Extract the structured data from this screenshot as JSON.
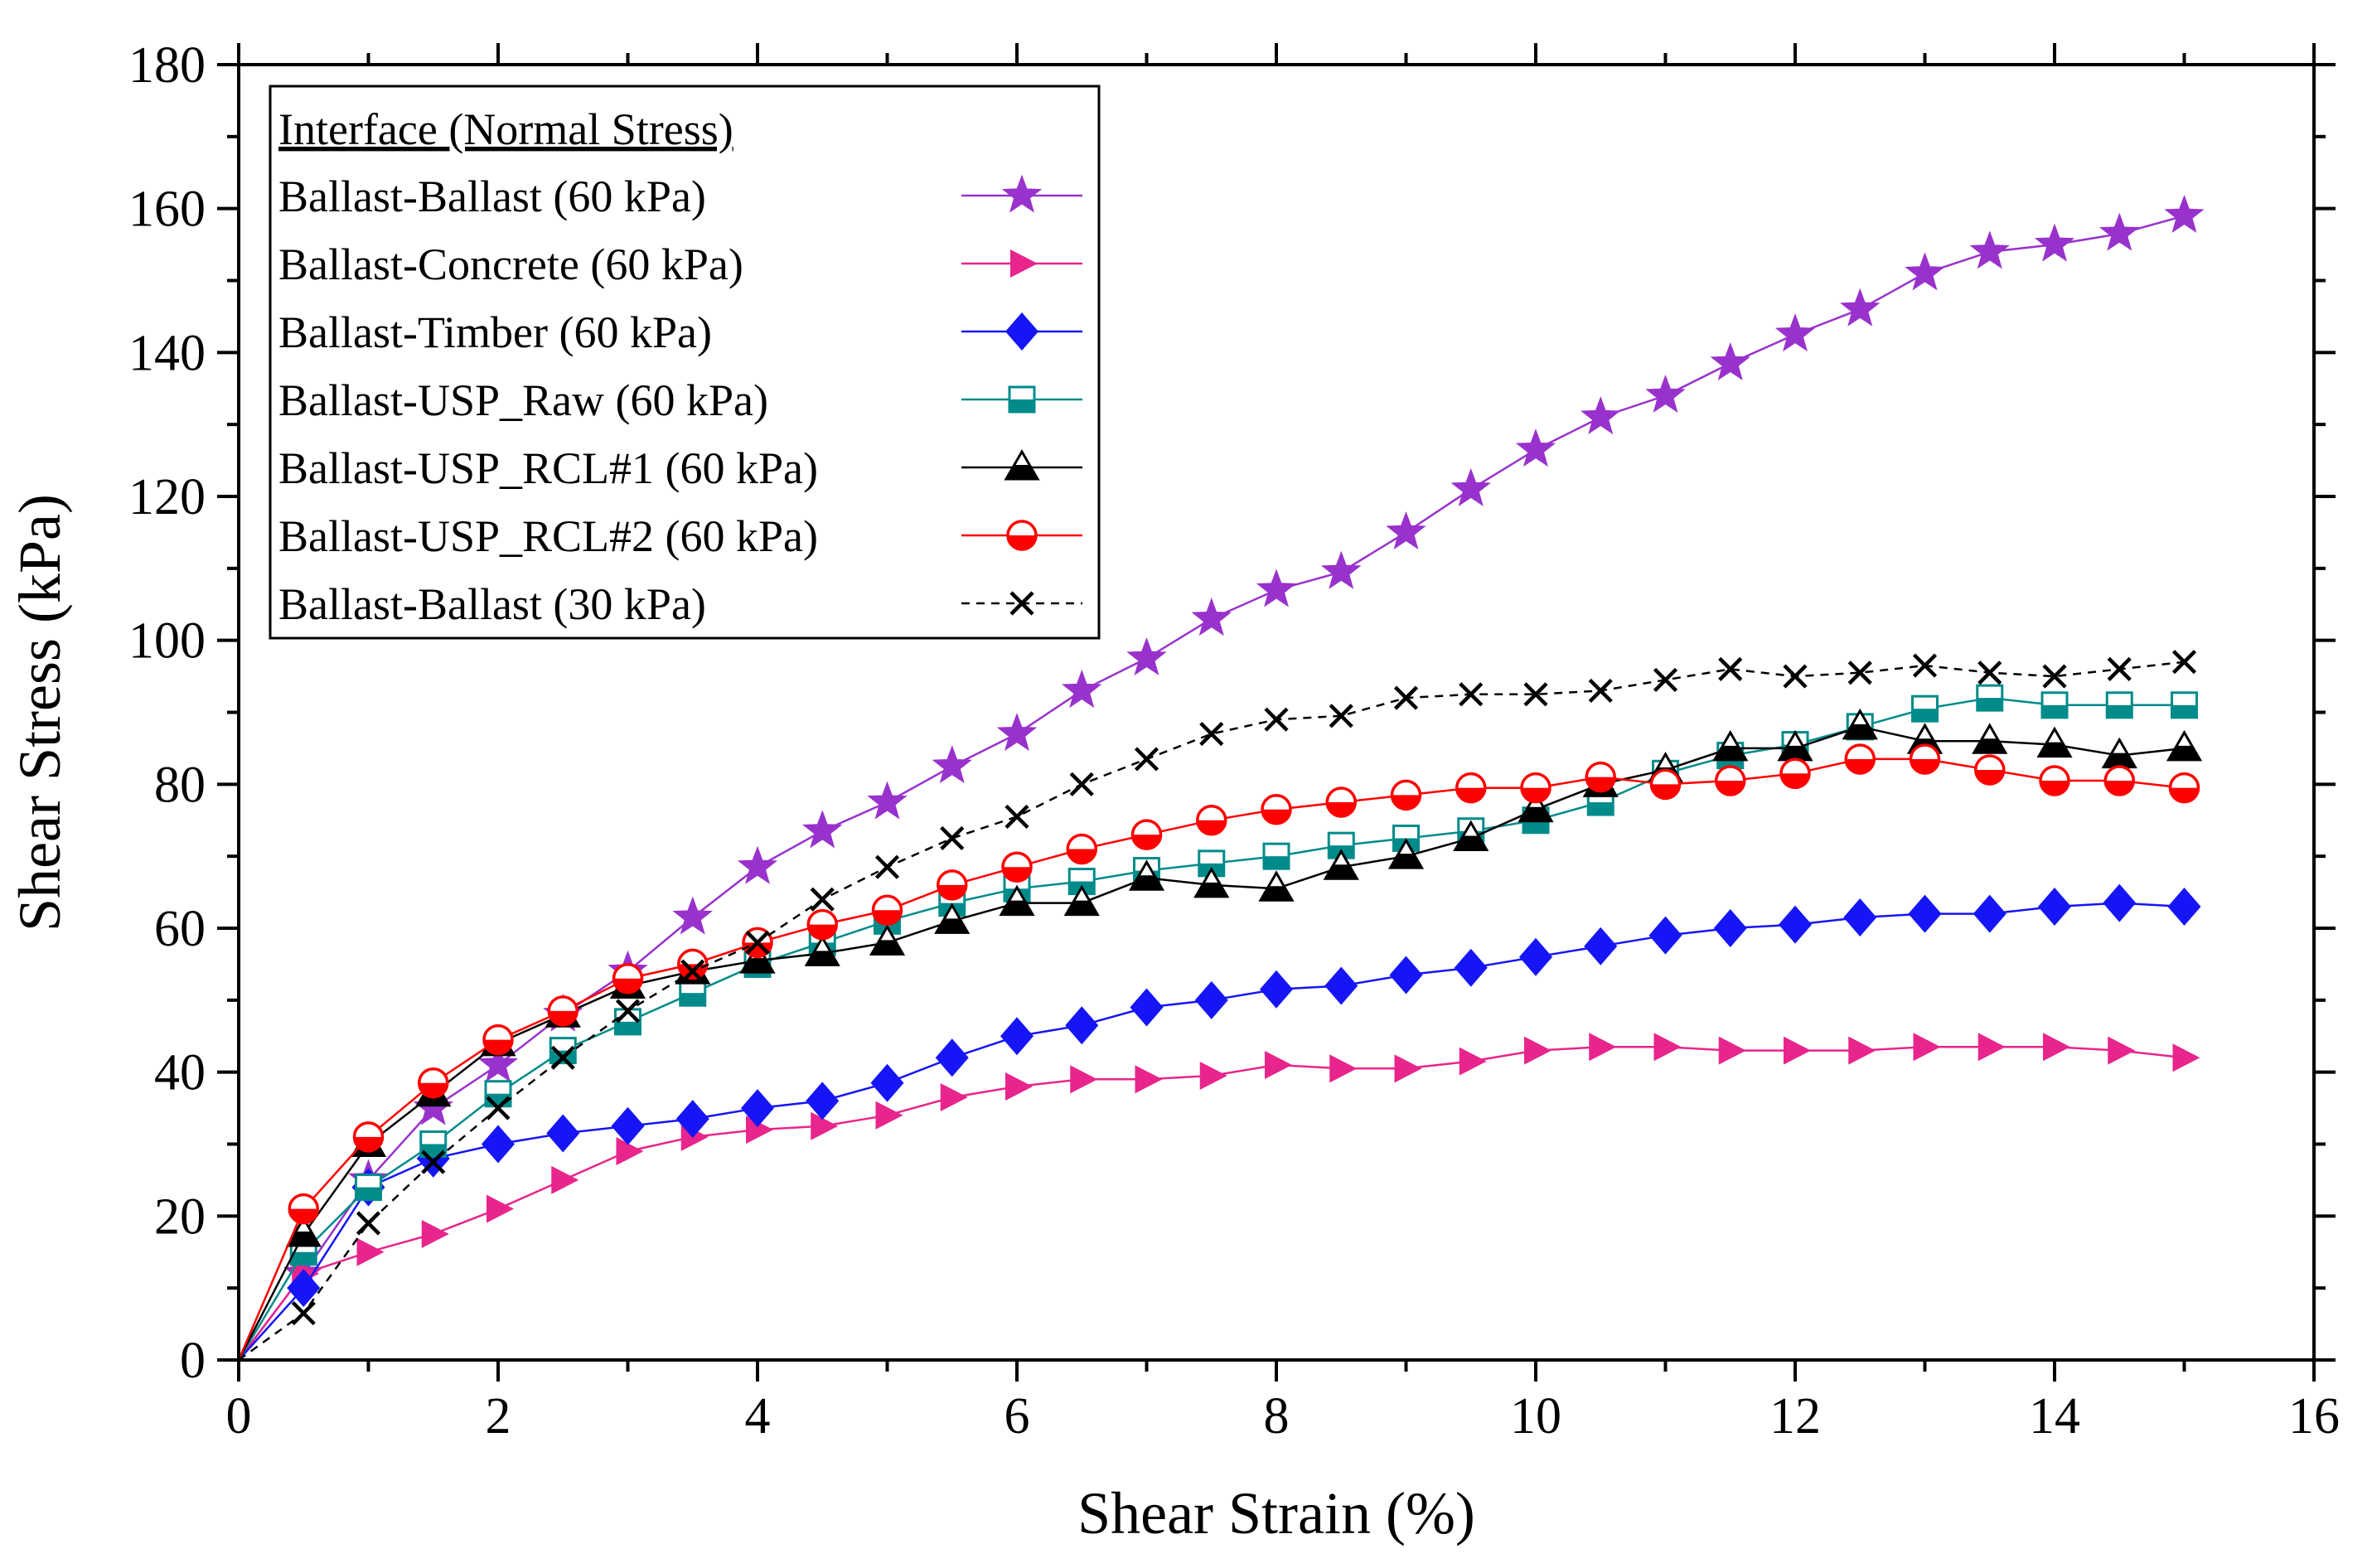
{
  "chart_data": {
    "type": "line",
    "title": "",
    "xlabel": "Shear Strain (%)",
    "ylabel": "Shear Stress (kPa)",
    "xlim": [
      0,
      16
    ],
    "ylim": [
      0,
      180
    ],
    "xticks": [
      0,
      2,
      4,
      6,
      8,
      10,
      12,
      14,
      16
    ],
    "yticks": [
      0,
      20,
      40,
      60,
      80,
      100,
      120,
      140,
      160,
      180
    ],
    "grid": false,
    "legend_position": "top-left",
    "legend_title": "Interface (Normal Stress)",
    "x": [
      0,
      0.5,
      1,
      1.5,
      2,
      2.5,
      3,
      3.5,
      4,
      4.5,
      5,
      5.5,
      6,
      6.5,
      7,
      7.5,
      8,
      8.5,
      9,
      9.5,
      10,
      10.5,
      11,
      11.5,
      12,
      12.5,
      13,
      13.5,
      14,
      14.5,
      15
    ],
    "series": [
      {
        "name": "Ballast-Ballast (60 kPa)",
        "color": "#9932CC",
        "marker": "star",
        "dash": "solid",
        "values": [
          0,
          12,
          25,
          35,
          41,
          48,
          54,
          61.5,
          68.5,
          73.5,
          77.5,
          82.5,
          87,
          93,
          97.5,
          103,
          107,
          109.5,
          115,
          121,
          126.5,
          131,
          134,
          138.5,
          142.5,
          146,
          151,
          154,
          155,
          156.5,
          159
        ]
      },
      {
        "name": "Ballast-Concrete (60 kPa)",
        "color": "#E8258C",
        "marker": "triangle-right",
        "dash": "solid",
        "values": [
          0,
          12,
          15,
          17.5,
          21,
          25,
          29,
          31,
          32,
          32.5,
          34,
          36.5,
          38,
          39,
          39,
          39.5,
          41,
          40.5,
          40.5,
          41.5,
          43,
          43.5,
          43.5,
          43,
          43,
          43,
          43.5,
          43.5,
          43.5,
          43,
          42
        ]
      },
      {
        "name": "Ballast-Timber (60 kPa)",
        "color": "#1515F5",
        "marker": "diamond",
        "dash": "solid",
        "values": [
          0,
          10,
          24,
          28,
          30,
          31.5,
          32.5,
          33.5,
          35,
          36,
          38.5,
          42,
          45,
          46.5,
          49,
          50,
          51.5,
          52,
          53.5,
          54.5,
          56,
          57.5,
          59,
          60,
          60.5,
          61.5,
          62,
          62,
          63,
          63.5,
          63
        ]
      },
      {
        "name": "Ballast-USP_Raw (60 kPa)",
        "color": "#008B8B",
        "marker": "square-half",
        "dash": "solid",
        "values": [
          0,
          15,
          24,
          30,
          37,
          43,
          47,
          51,
          55,
          58,
          61,
          63.5,
          65.5,
          66.5,
          68,
          69,
          70,
          71.5,
          72.5,
          73.5,
          75,
          77.5,
          81.5,
          84,
          85.5,
          88,
          90.5,
          92,
          91,
          91,
          91
        ]
      },
      {
        "name": "Ballast-USP_RCL#1 (60 kPa)",
        "color": "#000000",
        "marker": "triangle-half",
        "dash": "solid",
        "values": [
          0,
          17.5,
          30,
          37,
          44,
          48,
          52,
          54,
          55.5,
          56.5,
          58,
          61,
          63.5,
          63.5,
          67,
          66,
          65.5,
          68.5,
          70,
          72.5,
          76.5,
          80,
          82,
          85,
          85,
          88,
          86,
          86,
          85.5,
          84,
          85
        ]
      },
      {
        "name": "Ballast-USP_RCL#2 (60 kPa)",
        "color": "#FF0000",
        "marker": "circle-half",
        "dash": "solid",
        "values": [
          0,
          21,
          31,
          38.5,
          44.5,
          48.5,
          53,
          55,
          58,
          60.5,
          62.5,
          66,
          68.5,
          71,
          73,
          75,
          76.5,
          77.5,
          78.5,
          79.5,
          79.5,
          81,
          80,
          80.5,
          81.5,
          83.5,
          83.5,
          82,
          80.5,
          80.5,
          79.5
        ]
      },
      {
        "name": "Ballast-Ballast (30 kPa)",
        "color": "#000000",
        "marker": "x",
        "dash": "dashed",
        "values": [
          0,
          6.5,
          19,
          27.5,
          35,
          42,
          48.5,
          54,
          58,
          64,
          68.5,
          72.5,
          75.5,
          80,
          83.5,
          87,
          89,
          89.5,
          92,
          92.5,
          92.5,
          93,
          94.5,
          96,
          95,
          95.5,
          96.5,
          95.5,
          95,
          96,
          97
        ]
      }
    ]
  }
}
